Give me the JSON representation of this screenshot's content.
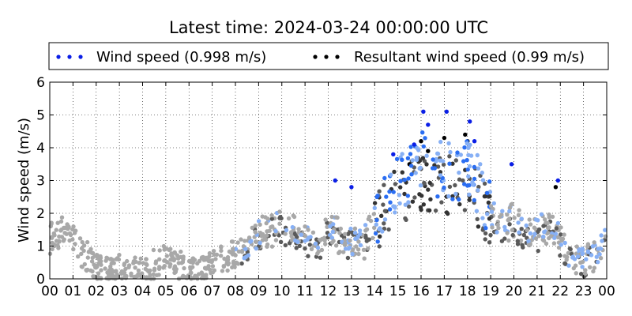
{
  "chart_data": {
    "type": "scatter",
    "title": "Latest time: 2024-03-24 00:00:00 UTC",
    "ylabel": "Wind speed (m/s)",
    "xlabel": "",
    "x_range_hours": [
      0,
      24
    ],
    "ylim": [
      0,
      6
    ],
    "x_tick_labels": [
      "00",
      "01",
      "02",
      "03",
      "04",
      "05",
      "06",
      "07",
      "08",
      "09",
      "10",
      "11",
      "12",
      "13",
      "14",
      "15",
      "16",
      "17",
      "18",
      "19",
      "20",
      "21",
      "22",
      "23",
      "00"
    ],
    "y_tick_labels": [
      "0",
      "1",
      "2",
      "3",
      "4",
      "5",
      "6"
    ],
    "grid": true,
    "legend_position": "top",
    "series": [
      {
        "name": "Wind speed (0.998 m/s)",
        "color_latest": "#0a1ee6",
        "color_recent": "#2b6ef2",
        "color_older": "#87b0f5",
        "color_oldest": "#a8a8a8",
        "points_hour_mps": [
          [
            0.0,
            1.3
          ],
          [
            0.5,
            1.5
          ],
          [
            1.0,
            1.2
          ],
          [
            1.5,
            0.8
          ],
          [
            2.0,
            0.4
          ],
          [
            2.5,
            0.2
          ],
          [
            3.0,
            0.3
          ],
          [
            3.5,
            0.2
          ],
          [
            4.0,
            0.3
          ],
          [
            4.5,
            0.5
          ],
          [
            5.0,
            0.6
          ],
          [
            5.5,
            0.5
          ],
          [
            6.0,
            0.2
          ],
          [
            6.5,
            0.2
          ],
          [
            7.0,
            0.4
          ],
          [
            7.5,
            0.6
          ],
          [
            8.0,
            0.9
          ],
          [
            8.5,
            1.1
          ],
          [
            9.0,
            1.4
          ],
          [
            9.5,
            1.6
          ],
          [
            10.0,
            1.7
          ],
          [
            10.5,
            1.5
          ],
          [
            11.0,
            1.3
          ],
          [
            11.5,
            1.2
          ],
          [
            12.0,
            1.5
          ],
          [
            12.5,
            1.4
          ],
          [
            13.0,
            1.2
          ],
          [
            13.5,
            1.1
          ],
          [
            14.0,
            1.8
          ],
          [
            14.5,
            2.6
          ],
          [
            15.0,
            3.0
          ],
          [
            15.5,
            3.2
          ],
          [
            16.0,
            3.6
          ],
          [
            16.5,
            3.3
          ],
          [
            17.0,
            3.4
          ],
          [
            17.5,
            3.2
          ],
          [
            18.0,
            3.5
          ],
          [
            18.5,
            2.8
          ],
          [
            19.0,
            2.0
          ],
          [
            19.5,
            1.7
          ],
          [
            20.0,
            1.9
          ],
          [
            20.5,
            1.5
          ],
          [
            21.0,
            1.4
          ],
          [
            21.5,
            1.8
          ],
          [
            22.0,
            1.3
          ],
          [
            22.5,
            0.6
          ],
          [
            23.0,
            0.5
          ],
          [
            23.5,
            0.8
          ],
          [
            24.0,
            1.2
          ]
        ],
        "peaks_hour_mps": [
          [
            16.1,
            5.1
          ],
          [
            17.1,
            5.1
          ],
          [
            18.1,
            4.8
          ],
          [
            16.3,
            4.7
          ],
          [
            15.7,
            4.1
          ],
          [
            18.3,
            4.2
          ],
          [
            14.8,
            3.8
          ],
          [
            19.9,
            3.5
          ],
          [
            21.9,
            3.0
          ],
          [
            12.3,
            3.0
          ],
          [
            13.0,
            2.8
          ]
        ]
      },
      {
        "name": "Resultant wind speed (0.99 m/s)",
        "color_latest": "#000000",
        "color_recent": "#333333",
        "color_older": "#5a5a5a",
        "color_oldest": "#a8a8a8",
        "points_hour_mps": [
          [
            0.0,
            1.2
          ],
          [
            0.5,
            1.4
          ],
          [
            1.0,
            1.1
          ],
          [
            1.5,
            0.7
          ],
          [
            2.0,
            0.3
          ],
          [
            2.5,
            0.2
          ],
          [
            3.0,
            0.2
          ],
          [
            3.5,
            0.1
          ],
          [
            4.0,
            0.2
          ],
          [
            4.5,
            0.4
          ],
          [
            5.0,
            0.5
          ],
          [
            5.5,
            0.4
          ],
          [
            6.0,
            0.1
          ],
          [
            6.5,
            0.1
          ],
          [
            7.0,
            0.3
          ],
          [
            7.5,
            0.5
          ],
          [
            8.0,
            0.8
          ],
          [
            8.5,
            1.0
          ],
          [
            9.0,
            1.2
          ],
          [
            9.5,
            1.4
          ],
          [
            10.0,
            1.5
          ],
          [
            10.5,
            1.3
          ],
          [
            11.0,
            1.1
          ],
          [
            11.5,
            1.0
          ],
          [
            12.0,
            1.3
          ],
          [
            12.5,
            1.2
          ],
          [
            13.0,
            1.0
          ],
          [
            13.5,
            0.9
          ],
          [
            14.0,
            1.6
          ],
          [
            14.5,
            2.2
          ],
          [
            15.0,
            2.6
          ],
          [
            15.5,
            2.7
          ],
          [
            16.0,
            3.0
          ],
          [
            16.5,
            2.8
          ],
          [
            17.0,
            2.9
          ],
          [
            17.5,
            2.8
          ],
          [
            18.0,
            3.0
          ],
          [
            18.5,
            2.4
          ],
          [
            19.0,
            1.7
          ],
          [
            19.5,
            1.5
          ],
          [
            20.0,
            1.6
          ],
          [
            20.5,
            1.3
          ],
          [
            21.0,
            1.2
          ],
          [
            21.5,
            1.6
          ],
          [
            22.0,
            1.1
          ],
          [
            22.5,
            0.5
          ],
          [
            23.0,
            0.4
          ],
          [
            23.5,
            0.7
          ],
          [
            24.0,
            1.1
          ]
        ],
        "peaks_hour_mps": [
          [
            16.0,
            4.2
          ],
          [
            17.0,
            4.3
          ],
          [
            18.0,
            4.2
          ],
          [
            16.3,
            3.9
          ],
          [
            15.5,
            3.5
          ],
          [
            17.9,
            4.4
          ],
          [
            21.8,
            2.8
          ]
        ]
      }
    ]
  }
}
